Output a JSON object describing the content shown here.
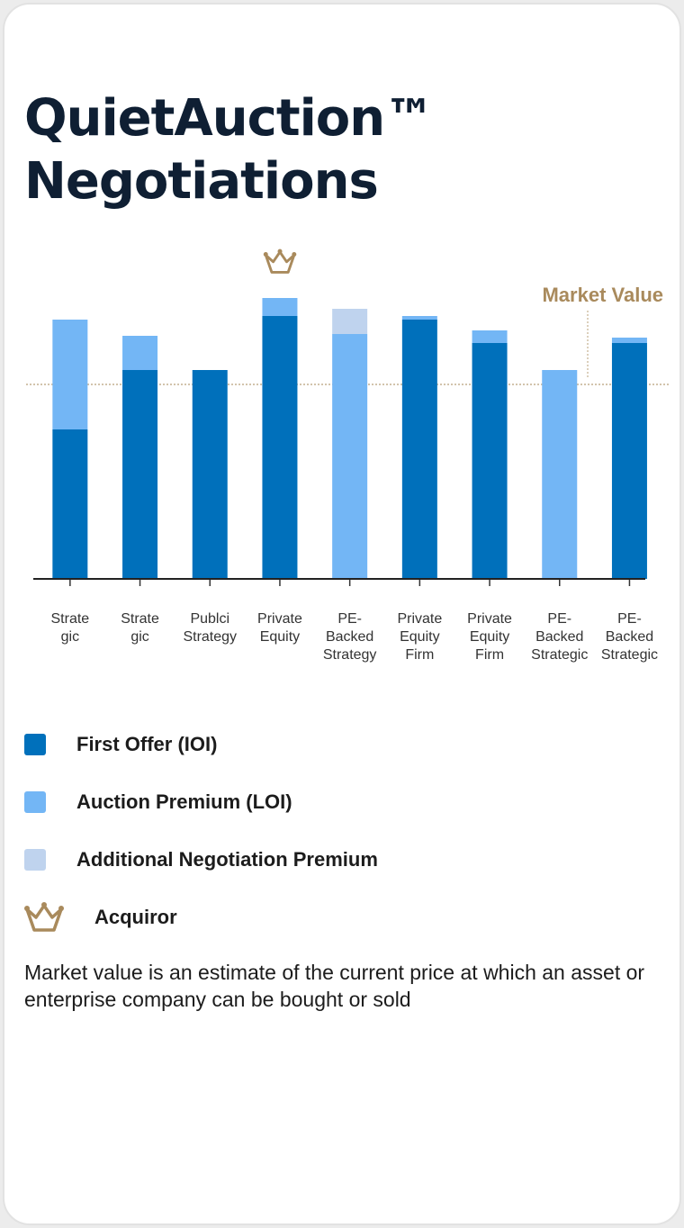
{
  "title_line1": "QuietAuction™",
  "title_line2": "Negotiations",
  "chart_data": {
    "type": "bar",
    "stacked": true,
    "categories": [
      [
        "Strate",
        "gic"
      ],
      [
        "Strate",
        "gic"
      ],
      [
        "Publci",
        "Strategy"
      ],
      [
        "Private",
        "Equity"
      ],
      [
        "PE-",
        "Backed",
        "Strategy"
      ],
      [
        "Private",
        "Equity",
        "Firm"
      ],
      [
        "Private",
        "Equity",
        "Firm"
      ],
      [
        "PE-",
        "Backed",
        "Strategic"
      ],
      [
        "PE-",
        "Backed",
        "Strategic"
      ]
    ],
    "series": [
      {
        "name": "First Offer (IOI)",
        "color": "#0070bb",
        "values": [
          83,
          116,
          116,
          146,
          0,
          144,
          131,
          0,
          131
        ]
      },
      {
        "name": "Auction Premium (LOI)",
        "color": "#73b6f5",
        "values": [
          61,
          19,
          0,
          10,
          136,
          2,
          7,
          116,
          3
        ]
      },
      {
        "name": "Additional Negotiation Premium",
        "color": "#bfd3ee",
        "values": [
          0,
          0,
          0,
          0,
          14,
          0,
          0,
          0,
          0
        ]
      }
    ],
    "acquiror_index": 3,
    "market_value": 108,
    "market_value_label": "Market Value",
    "ylim": [
      0,
      160
    ],
    "xlabel": "",
    "ylabel": "",
    "grid": false
  },
  "legend": {
    "items": [
      {
        "label": "First Offer (IOI)",
        "color": "#0070bb"
      },
      {
        "label": "Auction Premium (LOI)",
        "color": "#73b6f5"
      },
      {
        "label": "Additional Negotiation Premium",
        "color": "#bfd3ee"
      }
    ],
    "acquiror_label": "Acquiror",
    "acquiror_icon": "crown-icon",
    "acquiror_color": "#a98a5c"
  },
  "footnote": "Market value is an estimate of the current price at which an asset or enterprise company can be bought or sold"
}
